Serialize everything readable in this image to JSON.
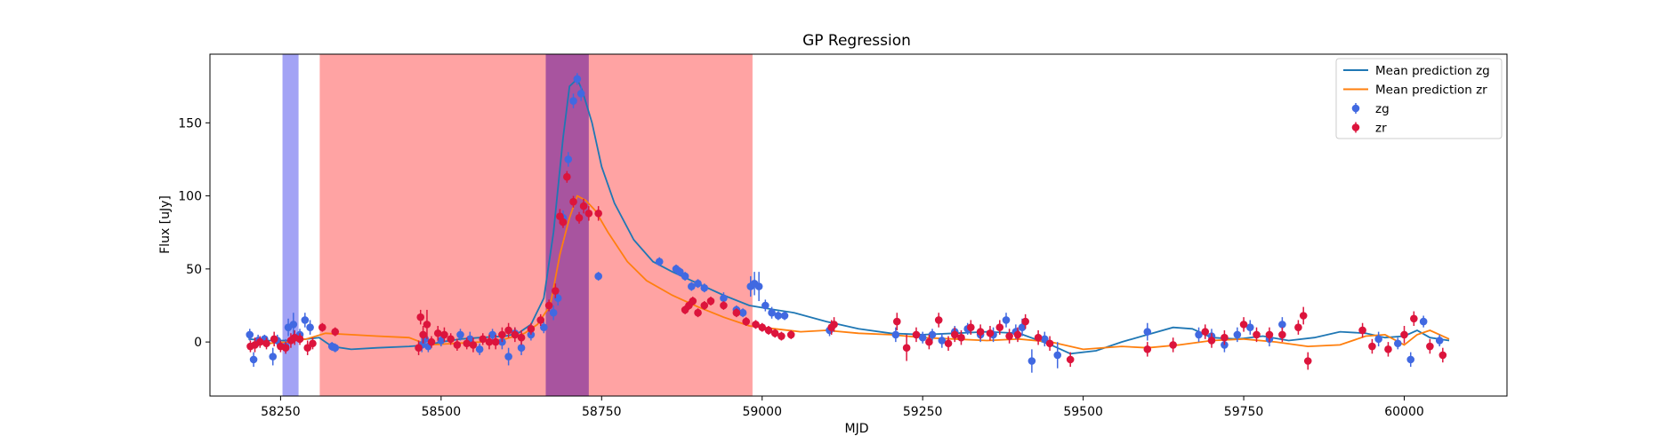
{
  "chart_data": {
    "type": "scatter",
    "title": "GP Regression",
    "xlabel": "MJD",
    "ylabel": "Flux [uJy]",
    "xlim": [
      58140,
      60160
    ],
    "ylim": [
      -37,
      197
    ],
    "x_ticks": [
      58250,
      58500,
      58750,
      59000,
      59250,
      59500,
      59750,
      60000
    ],
    "y_ticks": [
      0,
      50,
      100,
      150
    ],
    "grid": false,
    "legend_position": "top-right",
    "colors": {
      "zg": "#4169e1",
      "zr": "#dc143c",
      "mean_zg": "#1f77b4",
      "mean_zr": "#ff7f0e",
      "band_blue": "#6666ee",
      "band_red": "#ff6666",
      "band_purple": "#8b3a9e"
    },
    "shaded_regions": [
      {
        "x0": 58253,
        "x1": 58278,
        "color": "band_blue"
      },
      {
        "x0": 58311,
        "x1": 58985,
        "color": "band_red"
      },
      {
        "x0": 58663,
        "x1": 58730,
        "color": "band_purple"
      }
    ],
    "legend": [
      {
        "label": "Mean prediction zg",
        "kind": "line",
        "color": "mean_zg"
      },
      {
        "label": "Mean prediction zr",
        "kind": "line",
        "color": "mean_zr"
      },
      {
        "label": "zg",
        "kind": "marker",
        "color": "zg"
      },
      {
        "label": "zr",
        "kind": "marker",
        "color": "zr"
      }
    ],
    "series": [
      {
        "name": "Mean prediction zg",
        "kind": "line",
        "color": "mean_zg",
        "x": [
          58200,
          58230,
          58260,
          58290,
          58310,
          58330,
          58360,
          58400,
          58450,
          58480,
          58500,
          58530,
          58560,
          58600,
          58620,
          58640,
          58660,
          58675,
          58690,
          58700,
          58712,
          58720,
          58735,
          58750,
          58770,
          58800,
          58830,
          58860,
          58900,
          58940,
          58980,
          59020,
          59050,
          59100,
          59150,
          59200,
          59250,
          59300,
          59350,
          59400,
          59450,
          59480,
          59520,
          59560,
          59600,
          59640,
          59670,
          59700,
          59740,
          59780,
          59820,
          59860,
          59900,
          59940,
          59970,
          60000,
          60020,
          60040,
          60070
        ],
        "y": [
          2,
          1,
          1,
          2,
          3,
          -3,
          -5,
          -4,
          -3,
          -2,
          0,
          2,
          3,
          4,
          6,
          12,
          30,
          75,
          140,
          175,
          180,
          172,
          150,
          120,
          95,
          70,
          55,
          48,
          40,
          32,
          25,
          22,
          20,
          14,
          9,
          6,
          5,
          6,
          7,
          6,
          -2,
          -8,
          -6,
          0,
          5,
          10,
          9,
          3,
          2,
          4,
          1,
          3,
          7,
          6,
          3,
          4,
          8,
          3,
          1
        ]
      },
      {
        "name": "Mean prediction zr",
        "kind": "line",
        "color": "mean_zr",
        "x": [
          58200,
          58230,
          58260,
          58290,
          58320,
          58360,
          58400,
          58450,
          58480,
          58520,
          58560,
          58600,
          58630,
          58650,
          58670,
          58685,
          58700,
          58712,
          58725,
          58740,
          58760,
          58790,
          58820,
          58860,
          58900,
          58940,
          58980,
          59020,
          59060,
          59100,
          59150,
          59200,
          59250,
          59300,
          59350,
          59400,
          59450,
          59500,
          59560,
          59600,
          59650,
          59700,
          59750,
          59800,
          59850,
          59900,
          59940,
          59970,
          60000,
          60020,
          60040,
          60070
        ],
        "y": [
          -2,
          -1,
          0,
          2,
          6,
          5,
          4,
          3,
          -2,
          -1,
          0,
          2,
          6,
          12,
          25,
          60,
          85,
          100,
          97,
          90,
          75,
          55,
          42,
          32,
          24,
          17,
          11,
          9,
          7,
          8,
          6,
          5,
          3,
          2,
          1,
          2,
          0,
          -5,
          -3,
          -4,
          -2,
          1,
          2,
          0,
          -3,
          -2,
          4,
          5,
          -2,
          5,
          8,
          2
        ]
      },
      {
        "name": "zg",
        "kind": "errorbar",
        "color": "zg",
        "x": [
          58202,
          58208,
          58215,
          58225,
          58238,
          58245,
          58258,
          58262,
          58270,
          58280,
          58288,
          58296,
          58330,
          58335,
          58470,
          58475,
          58480,
          58500,
          58530,
          58545,
          58560,
          58580,
          58595,
          58605,
          58615,
          58625,
          58640,
          58660,
          58675,
          58682,
          58690,
          58698,
          58706,
          58712,
          58718,
          58745,
          58840,
          58866,
          58872,
          58880,
          58890,
          58900,
          58910,
          58940,
          58960,
          58970,
          58982,
          58988,
          58995,
          59005,
          59015,
          59025,
          59035,
          59105,
          59208,
          59250,
          59265,
          59280,
          59300,
          59320,
          59340,
          59360,
          59380,
          59395,
          59405,
          59420,
          59440,
          59460,
          59600,
          59680,
          59700,
          59720,
          59740,
          59760,
          59790,
          59810,
          59960,
          59990,
          60010,
          60030,
          60055
        ],
        "y": [
          5,
          -12,
          1,
          2,
          -10,
          1,
          -3,
          10,
          12,
          5,
          15,
          10,
          -3,
          -4,
          -2,
          2,
          -3,
          1,
          5,
          2,
          -5,
          5,
          0,
          -10,
          6,
          -4,
          5,
          10,
          20,
          30,
          85,
          125,
          165,
          180,
          170,
          45,
          55,
          50,
          48,
          45,
          38,
          40,
          37,
          30,
          22,
          20,
          38,
          40,
          38,
          25,
          20,
          18,
          18,
          8,
          5,
          3,
          5,
          1,
          7,
          9,
          5,
          5,
          15,
          7,
          10,
          -13,
          2,
          -9,
          7,
          5,
          4,
          -2,
          5,
          10,
          2,
          12,
          2,
          -1,
          -12,
          14,
          1
        ],
        "err": [
          4,
          5,
          4,
          3,
          6,
          4,
          5,
          6,
          8,
          4,
          5,
          5,
          3,
          3,
          5,
          4,
          4,
          4,
          4,
          5,
          4,
          4,
          5,
          6,
          4,
          5,
          4,
          4,
          5,
          5,
          5,
          5,
          5,
          4,
          5,
          3,
          3,
          3,
          3,
          3,
          3,
          3,
          3,
          4,
          3,
          3,
          7,
          8,
          10,
          4,
          4,
          3,
          3,
          4,
          5,
          4,
          4,
          5,
          4,
          4,
          5,
          5,
          5,
          5,
          6,
          8,
          5,
          9,
          6,
          5,
          5,
          5,
          5,
          5,
          5,
          5,
          5,
          4,
          5,
          4,
          4
        ]
      },
      {
        "name": "zr",
        "kind": "errorbar",
        "color": "zr",
        "x": [
          58203,
          58210,
          58218,
          58228,
          58240,
          58250,
          58258,
          58266,
          58272,
          58280,
          58292,
          58300,
          58315,
          58335,
          58465,
          58468,
          58472,
          58478,
          58485,
          58495,
          58505,
          58515,
          58525,
          58540,
          58550,
          58565,
          58575,
          58585,
          58595,
          58605,
          58615,
          58625,
          58640,
          58655,
          58668,
          58678,
          58685,
          58690,
          58696,
          58706,
          58715,
          58722,
          58730,
          58745,
          58880,
          58886,
          58892,
          58900,
          58910,
          58920,
          58940,
          58960,
          58975,
          58990,
          59000,
          59010,
          59020,
          59030,
          59045,
          59108,
          59112,
          59210,
          59225,
          59240,
          59260,
          59275,
          59290,
          59300,
          59310,
          59325,
          59340,
          59355,
          59370,
          59385,
          59398,
          59410,
          59430,
          59448,
          59480,
          59600,
          59640,
          59690,
          59700,
          59720,
          59750,
          59770,
          59790,
          59810,
          59835,
          59843,
          59850,
          59935,
          59950,
          59975,
          60000,
          60015,
          60040,
          60060
        ],
        "y": [
          -3,
          -2,
          0,
          -1,
          2,
          -3,
          -4,
          1,
          3,
          2,
          -4,
          -1,
          10,
          7,
          -4,
          17,
          5,
          12,
          0,
          6,
          5,
          2,
          -2,
          -1,
          -2,
          2,
          0,
          0,
          5,
          8,
          5,
          3,
          9,
          15,
          25,
          35,
          86,
          82,
          113,
          96,
          85,
          93,
          88,
          88,
          22,
          25,
          28,
          20,
          25,
          28,
          25,
          20,
          14,
          12,
          10,
          8,
          6,
          4,
          5,
          10,
          12,
          14,
          -4,
          5,
          0,
          15,
          -1,
          5,
          3,
          10,
          7,
          6,
          10,
          4,
          5,
          14,
          3,
          -1,
          -12,
          -5,
          -2,
          7,
          1,
          3,
          12,
          5,
          5,
          5,
          10,
          18,
          -13,
          8,
          -3,
          -5,
          5,
          16,
          -3,
          -9
        ],
        "err": [
          4,
          5,
          4,
          4,
          5,
          4,
          4,
          5,
          5,
          4,
          5,
          4,
          3,
          3,
          5,
          5,
          6,
          10,
          4,
          5,
          5,
          4,
          4,
          4,
          5,
          4,
          5,
          5,
          5,
          5,
          5,
          5,
          4,
          4,
          4,
          5,
          5,
          4,
          4,
          4,
          4,
          5,
          5,
          5,
          3,
          3,
          3,
          3,
          3,
          3,
          3,
          3,
          3,
          3,
          3,
          3,
          3,
          3,
          3,
          5,
          5,
          6,
          9,
          5,
          5,
          5,
          5,
          5,
          5,
          5,
          5,
          5,
          5,
          5,
          5,
          5,
          5,
          5,
          5,
          5,
          5,
          5,
          5,
          5,
          5,
          5,
          5,
          5,
          5,
          6,
          6,
          5,
          5,
          5,
          6,
          5,
          5,
          5
        ]
      }
    ]
  }
}
